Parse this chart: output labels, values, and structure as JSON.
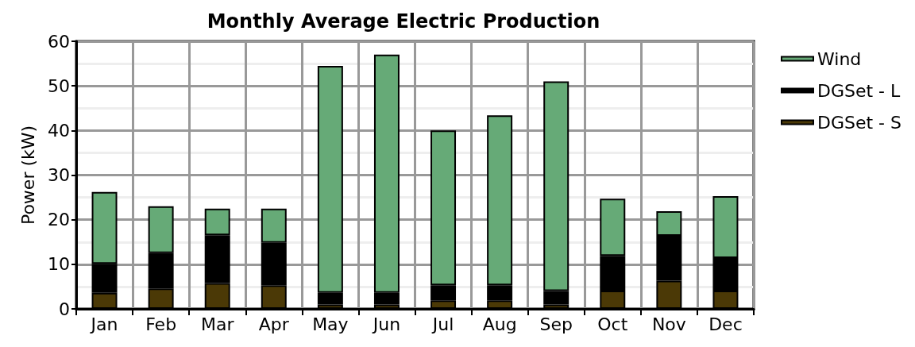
{
  "chart_data": {
    "type": "bar",
    "title": "Monthly Average Electric Production",
    "ylabel": "Power (kW)",
    "categories": [
      "Jan",
      "Feb",
      "Mar",
      "Apr",
      "May",
      "Jun",
      "Jul",
      "Aug",
      "Sep",
      "Oct",
      "Nov",
      "Dec"
    ],
    "stacked": true,
    "series": [
      {
        "name": "DGSet - S",
        "color": "#4b3906",
        "values": [
          3.6,
          4.6,
          5.8,
          5.3,
          1.0,
          1.0,
          1.9,
          1.9,
          1.0,
          4.1,
          6.3,
          4.1
        ]
      },
      {
        "name": "DGSet - L",
        "color": "#000000",
        "values": [
          6.5,
          7.9,
          10.7,
          9.5,
          2.6,
          2.6,
          3.4,
          3.4,
          3.0,
          7.8,
          10.1,
          7.3
        ]
      },
      {
        "name": "Wind",
        "color": "#66aa77",
        "values": [
          16.1,
          10.5,
          6.0,
          7.7,
          50.9,
          53.4,
          34.7,
          38.1,
          47.0,
          12.8,
          5.5,
          13.9
        ]
      }
    ],
    "ylim": [
      0,
      60
    ],
    "yticks": [
      0,
      10,
      20,
      30,
      40,
      50,
      60
    ],
    "grid": true,
    "legend": "right"
  }
}
